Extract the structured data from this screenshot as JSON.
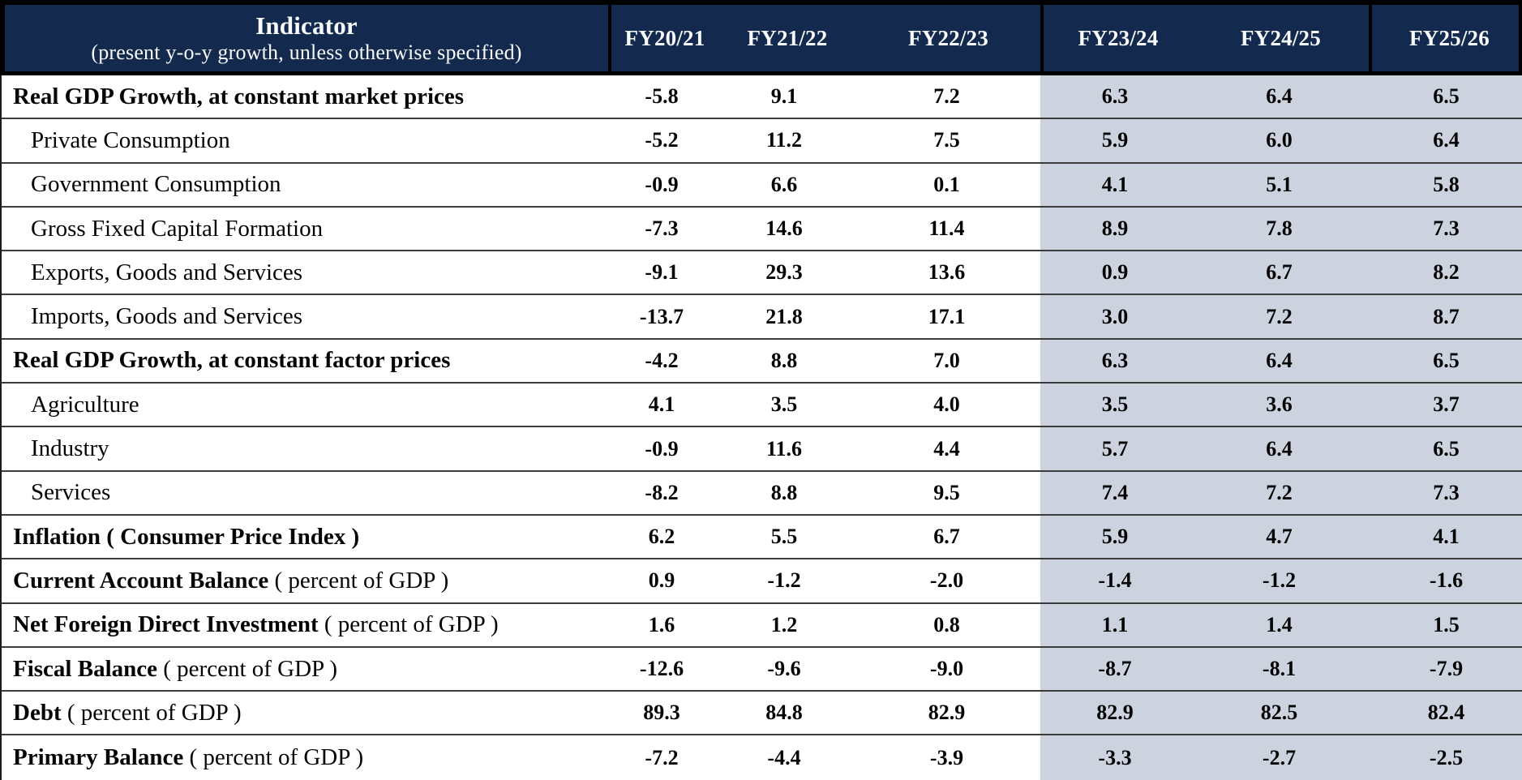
{
  "table": {
    "header": {
      "indicator_title": "Indicator",
      "indicator_subtitle": "(present y-o-y  growth, unless otherwise specified)",
      "columns": [
        {
          "label": "FY20/21",
          "projected": false
        },
        {
          "label": "FY21/22",
          "projected": false
        },
        {
          "label": "FY22/23",
          "projected": false
        },
        {
          "label": "FY23/24",
          "projected": true
        },
        {
          "label": "FY24/25",
          "projected": true
        },
        {
          "label": "FY25/26",
          "projected": true
        }
      ]
    },
    "rows": [
      {
        "id": "real-gdp-market-prices",
        "label": "Real GDP Growth, at constant market prices",
        "suffix": "",
        "bold": true,
        "indent": false,
        "values": [
          "-5.8",
          "9.1",
          "7.2",
          "6.3",
          "6.4",
          "6.5"
        ]
      },
      {
        "id": "private-consumption",
        "label": "Private Consumption",
        "suffix": "",
        "bold": false,
        "indent": true,
        "values": [
          "-5.2",
          "11.2",
          "7.5",
          "5.9",
          "6.0",
          "6.4"
        ]
      },
      {
        "id": "government-consumption",
        "label": "Government Consumption",
        "suffix": "",
        "bold": false,
        "indent": true,
        "values": [
          "-0.9",
          "6.6",
          "0.1",
          "4.1",
          "5.1",
          "5.8"
        ]
      },
      {
        "id": "gross-fixed-capital-formation",
        "label": "Gross Fixed Capital Formation",
        "suffix": "",
        "bold": false,
        "indent": true,
        "values": [
          "-7.3",
          "14.6",
          "11.4",
          "8.9",
          "7.8",
          "7.3"
        ]
      },
      {
        "id": "exports-goods-services",
        "label": "Exports, Goods and Services",
        "suffix": "",
        "bold": false,
        "indent": true,
        "values": [
          "-9.1",
          "29.3",
          "13.6",
          "0.9",
          "6.7",
          "8.2"
        ]
      },
      {
        "id": "imports-goods-services",
        "label": "Imports, Goods and Services",
        "suffix": "",
        "bold": false,
        "indent": true,
        "values": [
          "-13.7",
          "21.8",
          "17.1",
          "3.0",
          "7.2",
          "8.7"
        ]
      },
      {
        "id": "real-gdp-factor-prices",
        "label": "Real GDP Growth, at constant factor prices",
        "suffix": "",
        "bold": true,
        "indent": false,
        "values": [
          "-4.2",
          "8.8",
          "7.0",
          "6.3",
          "6.4",
          "6.5"
        ]
      },
      {
        "id": "agriculture",
        "label": "Agriculture",
        "suffix": "",
        "bold": false,
        "indent": true,
        "values": [
          "4.1",
          "3.5",
          "4.0",
          "3.5",
          "3.6",
          "3.7"
        ]
      },
      {
        "id": "industry",
        "label": "Industry",
        "suffix": "",
        "bold": false,
        "indent": true,
        "values": [
          "-0.9",
          "11.6",
          "4.4",
          "5.7",
          "6.4",
          "6.5"
        ]
      },
      {
        "id": "services",
        "label": "Services",
        "suffix": "",
        "bold": false,
        "indent": true,
        "values": [
          "-8.2",
          "8.8",
          "9.5",
          "7.4",
          "7.2",
          "7.3"
        ]
      },
      {
        "id": "inflation-cpi",
        "label": "Inflation ( Consumer Price Index )",
        "suffix": "",
        "bold": true,
        "indent": false,
        "values": [
          "6.2",
          "5.5",
          "6.7",
          "5.9",
          "4.7",
          "4.1"
        ]
      },
      {
        "id": "current-account-balance",
        "label": "Current Account Balance",
        "suffix": " ( percent of GDP )",
        "bold": true,
        "indent": false,
        "values": [
          "0.9",
          "-1.2",
          "-2.0",
          "-1.4",
          "-1.2",
          "-1.6"
        ]
      },
      {
        "id": "net-foreign-direct-investment",
        "label": "Net Foreign Direct Investment",
        "suffix": " ( percent of GDP )",
        "bold": true,
        "indent": false,
        "values": [
          "1.6",
          "1.2",
          "0.8",
          "1.1",
          "1.4",
          "1.5"
        ]
      },
      {
        "id": "fiscal-balance",
        "label": "Fiscal Balance",
        "suffix": " ( percent of GDP )",
        "bold": true,
        "indent": false,
        "values": [
          "-12.6",
          "-9.6",
          "-9.0",
          "-8.7",
          "-8.1",
          "-7.9"
        ]
      },
      {
        "id": "debt",
        "label": "Debt",
        "suffix": " ( percent of GDP )",
        "bold": true,
        "indent": false,
        "values": [
          "89.3",
          "84.8",
          "82.9",
          "82.9",
          "82.5",
          "82.4"
        ]
      },
      {
        "id": "primary-balance",
        "label": "Primary Balance",
        "suffix": " ( percent of GDP )",
        "bold": true,
        "indent": false,
        "values": [
          "-7.2",
          "-4.4",
          "-3.9",
          "-3.3",
          "-2.7",
          "-2.5"
        ]
      }
    ]
  },
  "colors": {
    "header_background": "#13294E",
    "header_text": "#F8FAFC",
    "projection_shading": "#CDD2DF",
    "outer_border": "#000000",
    "row_line": "#3C3C3C",
    "body_text": "#050505"
  },
  "chart_data": {
    "type": "table",
    "title": "Indicator (present y-o-y growth, unless otherwise specified)",
    "categories": [
      "FY20/21",
      "FY21/22",
      "FY22/23",
      "FY23/24",
      "FY24/25",
      "FY25/26"
    ],
    "series": [
      {
        "name": "Real GDP Growth, at constant market prices",
        "values": [
          -5.8,
          9.1,
          7.2,
          6.3,
          6.4,
          6.5
        ]
      },
      {
        "name": "Private Consumption",
        "values": [
          -5.2,
          11.2,
          7.5,
          5.9,
          6.0,
          6.4
        ]
      },
      {
        "name": "Government Consumption",
        "values": [
          -0.9,
          6.6,
          0.1,
          4.1,
          5.1,
          5.8
        ]
      },
      {
        "name": "Gross Fixed Capital Formation",
        "values": [
          -7.3,
          14.6,
          11.4,
          8.9,
          7.8,
          7.3
        ]
      },
      {
        "name": "Exports, Goods and Services",
        "values": [
          -9.1,
          29.3,
          13.6,
          0.9,
          6.7,
          8.2
        ]
      },
      {
        "name": "Imports, Goods and Services",
        "values": [
          -13.7,
          21.8,
          17.1,
          3.0,
          7.2,
          8.7
        ]
      },
      {
        "name": "Real GDP Growth, at constant factor prices",
        "values": [
          -4.2,
          8.8,
          7.0,
          6.3,
          6.4,
          6.5
        ]
      },
      {
        "name": "Agriculture",
        "values": [
          4.1,
          3.5,
          4.0,
          3.5,
          3.6,
          3.7
        ]
      },
      {
        "name": "Industry",
        "values": [
          -0.9,
          11.6,
          4.4,
          5.7,
          6.4,
          6.5
        ]
      },
      {
        "name": "Services",
        "values": [
          -8.2,
          8.8,
          9.5,
          7.4,
          7.2,
          7.3
        ]
      },
      {
        "name": "Inflation ( Consumer Price Index )",
        "values": [
          6.2,
          5.5,
          6.7,
          5.9,
          4.7,
          4.1
        ]
      },
      {
        "name": "Current Account Balance ( percent of GDP )",
        "values": [
          0.9,
          -1.2,
          -2.0,
          -1.4,
          -1.2,
          -1.6
        ]
      },
      {
        "name": "Net Foreign Direct Investment ( percent of GDP )",
        "values": [
          1.6,
          1.2,
          0.8,
          1.1,
          1.4,
          1.5
        ]
      },
      {
        "name": "Fiscal Balance ( percent of GDP )",
        "values": [
          -12.6,
          -9.6,
          -9.0,
          -8.7,
          -8.1,
          -7.9
        ]
      },
      {
        "name": "Debt ( percent of GDP )",
        "values": [
          89.3,
          84.8,
          82.9,
          82.9,
          82.5,
          82.4
        ]
      },
      {
        "name": "Primary Balance ( percent of GDP )",
        "values": [
          -7.2,
          -4.4,
          -3.9,
          -3.3,
          -2.7,
          -2.5
        ]
      }
    ],
    "layout": {
      "projected_columns": [
        "FY23/24",
        "FY24/25",
        "FY25/26"
      ],
      "projected_shading": "#CDD2DF"
    }
  }
}
